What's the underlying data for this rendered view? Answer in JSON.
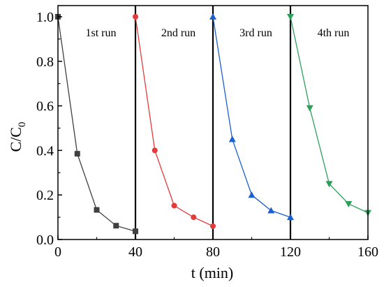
{
  "chart_data": {
    "type": "line",
    "xlabel": "t (min)",
    "ylabel": "C/C",
    "ylabel_subscript": "0",
    "xlim": [
      0,
      160
    ],
    "ylim": [
      0.0,
      1.05
    ],
    "xticks": [
      "0",
      "40",
      "80",
      "120",
      "160"
    ],
    "yticks": [
      "0.0",
      "0.2",
      "0.4",
      "0.6",
      "0.8",
      "1.0"
    ],
    "grid": false,
    "separators_x": [
      40,
      80,
      120
    ],
    "series": [
      {
        "name": "1st run",
        "color": "#404040",
        "marker": "square",
        "x": [
          0,
          10,
          20,
          30,
          40
        ],
        "y": [
          1.0,
          0.385,
          0.133,
          0.062,
          0.037
        ]
      },
      {
        "name": "2nd run",
        "color": "#e03c3c",
        "marker": "circle",
        "x": [
          40,
          50,
          60,
          70,
          80
        ],
        "y": [
          1.0,
          0.4,
          0.152,
          0.1,
          0.06
        ]
      },
      {
        "name": "3rd run",
        "color": "#1c5fcf",
        "marker": "triangle-up",
        "x": [
          80,
          90,
          100,
          110,
          120
        ],
        "y": [
          1.0,
          0.45,
          0.2,
          0.13,
          0.1
        ]
      },
      {
        "name": "4th run",
        "color": "#2ca05a",
        "marker": "triangle-down",
        "x": [
          120,
          130,
          140,
          150,
          160
        ],
        "y": [
          1.0,
          0.59,
          0.25,
          0.16,
          0.12
        ]
      }
    ]
  }
}
